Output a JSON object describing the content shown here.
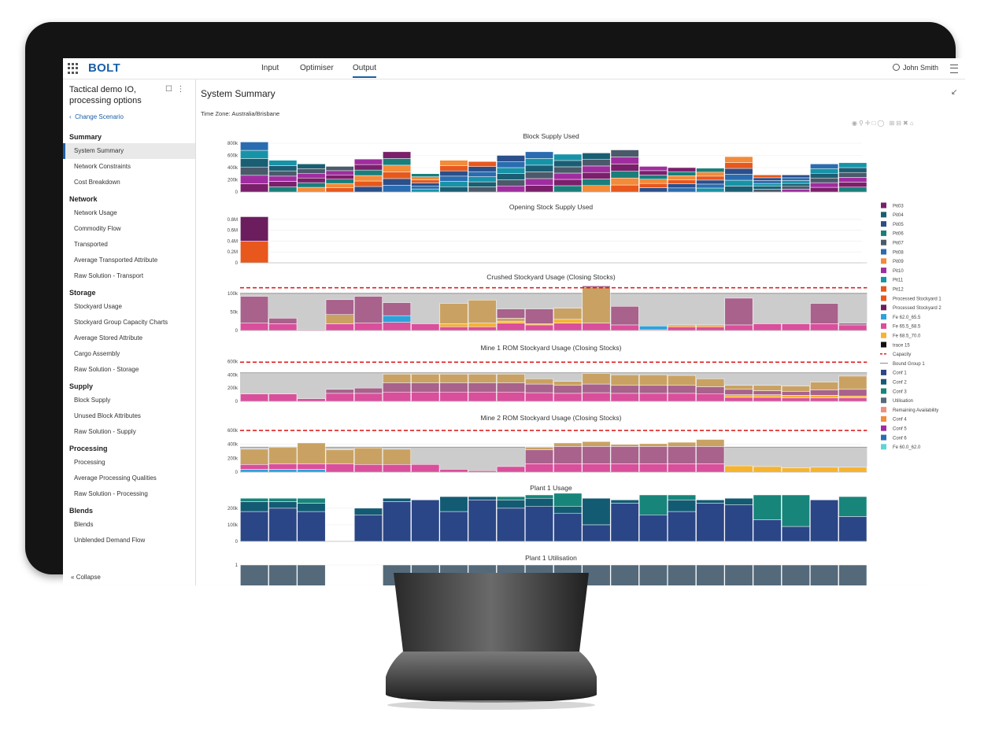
{
  "nav": {
    "logo": "BOLT",
    "tabs": [
      {
        "label": "Input"
      },
      {
        "label": "Optimiser"
      },
      {
        "label": "Output",
        "active": true
      }
    ],
    "user": "John Smith"
  },
  "sidebar": {
    "scenario_title": "Tactical demo IO, processing options",
    "change_scenario": "Change Scenario",
    "collapse": "Collapse",
    "groups": [
      {
        "title": "Summary",
        "items": [
          "System Summary",
          "Network Constraints",
          "Cost Breakdown"
        ]
      },
      {
        "title": "Network",
        "items": [
          "Network Usage",
          "Commodity Flow",
          "Transported",
          "Average Transported Attribute",
          "Raw Solution - Transport"
        ]
      },
      {
        "title": "Storage",
        "items": [
          "Stockyard Usage",
          "Stockyard Group Capacity Charts",
          "Average Stored Attribute",
          "Cargo Assembly",
          "Raw Solution - Storage"
        ]
      },
      {
        "title": "Supply",
        "items": [
          "Block Supply",
          "Unused Block Attributes",
          "Raw Solution - Supply"
        ]
      },
      {
        "title": "Processing",
        "items": [
          "Processing",
          "Average Processing Qualities",
          "Raw Solution - Processing"
        ]
      },
      {
        "title": "Blends",
        "items": [
          "Blends",
          "Unblended Demand Flow"
        ]
      }
    ],
    "active_item": "System Summary"
  },
  "main": {
    "title": "System Summary",
    "timezone": "Time Zone: Australia/Brisbane"
  },
  "colors": {
    "Pit03": "#7b1f6b",
    "Pit04": "#1a5e73",
    "Pit05": "#2a4f8a",
    "Pit06": "#1a7f7a",
    "Pit07": "#4a5a6a",
    "Pit08": "#2b6cb0",
    "Pit09": "#f28b3a",
    "Pit10": "#a02da0",
    "Pit11": "#1793a8",
    "Pit12": "#e8581c",
    "Processed Stockyard 1": "#e8581c",
    "Processed Stockyard 2": "#6b1d5e",
    "Fe 62.0_65.5": "#2ea1d9",
    "Fe 65.5_68.5": "#d94f9b",
    "Fe 68.5_70.0": "#f5b330",
    "trace 15": "#111111",
    "Capacity": "#e02020",
    "Bound Group 1": "#999999",
    "Conf 1": "#2b4686",
    "Conf 2": "#135b73",
    "Conf 3": "#17857a",
    "Utilisation": "#546a7b",
    "Remaining Availability": "#f08f80",
    "Conf 4": "#f28b3a",
    "Conf 5": "#a02da0",
    "Conf 6": "#2b6cb0",
    "Fe 60.0_62.0": "#5fd4d8",
    "bound_fill": "#cccccc",
    "tan": "#c9a263",
    "mauve": "#a8628c"
  },
  "legend": [
    "Pit03",
    "Pit04",
    "Pit05",
    "Pit06",
    "Pit07",
    "Pit08",
    "Pit09",
    "Pit10",
    "Pit11",
    "Pit12",
    "Processed Stockyard 1",
    "Processed Stockyard 2",
    "Fe 62.0_65.5",
    "Fe 65.5_68.5",
    "Fe 68.5_70.0",
    "trace 15",
    "Capacity",
    "Bound Group 1",
    "Conf 1",
    "Conf 2",
    "Conf 3",
    "Utilisation",
    "Remaining Availability",
    "Conf 4",
    "Conf 5",
    "Conf 6",
    "Fe 60.0_62.0"
  ],
  "chart_data": [
    {
      "type": "bar",
      "title": "Block Supply Used",
      "yticks": [
        "0",
        "200k",
        "400k",
        "600k",
        "800k"
      ],
      "ymax": 800,
      "totals": [
        820,
        520,
        460,
        420,
        540,
        660,
        300,
        520,
        500,
        600,
        660,
        620,
        640,
        690,
        420,
        400,
        390,
        580,
        280,
        280,
        460,
        480
      ],
      "series": [
        "Pit03",
        "Pit04",
        "Pit05",
        "Pit06",
        "Pit07",
        "Pit08",
        "Pit09",
        "Pit10",
        "Pit11",
        "Pit12"
      ]
    },
    {
      "type": "bar",
      "title": "Opening Stock Supply Used",
      "yticks": [
        "0",
        "0.2M",
        "0.4M",
        "0.6M",
        "0.8M"
      ],
      "ymax": 0.9,
      "series": [
        {
          "name": "Processed Stockyard 1",
          "values": [
            0.4
          ]
        },
        {
          "name": "Processed Stockyard 2",
          "values": [
            0.45
          ]
        }
      ]
    },
    {
      "type": "bar",
      "title": "Crushed Stockyard Usage (Closing Stocks)",
      "yticks": [
        "0",
        "50k",
        "100k"
      ],
      "ymax": 125,
      "capacity": 115,
      "bound": 100,
      "series": [
        {
          "name": "Fe 65.5_68.5",
          "values": [
            20,
            18,
            2,
            18,
            20,
            22,
            18,
            10,
            10,
            20,
            15,
            20,
            20,
            15,
            2,
            10,
            10,
            15,
            18,
            18,
            18,
            15
          ]
        },
        {
          "name": "Fe 62.0_65.5",
          "values": [
            0,
            0,
            0,
            0,
            0,
            18,
            0,
            0,
            0,
            0,
            0,
            0,
            0,
            0,
            10,
            0,
            0,
            0,
            0,
            0,
            0,
            0
          ]
        },
        {
          "name": "Fe 68.5_70.0",
          "values": [
            0,
            0,
            0,
            0,
            0,
            0,
            0,
            8,
            10,
            5,
            3,
            10,
            0,
            0,
            0,
            5,
            5,
            0,
            0,
            0,
            0,
            0
          ]
        },
        {
          "name": "tan",
          "values": [
            0,
            0,
            0,
            25,
            0,
            0,
            0,
            55,
            62,
            8,
            0,
            30,
            95,
            0,
            0,
            0,
            0,
            0,
            0,
            0,
            0,
            0
          ]
        },
        {
          "name": "mauve",
          "values": [
            72,
            15,
            0,
            40,
            72,
            35,
            0,
            0,
            0,
            25,
            40,
            0,
            5,
            50,
            0,
            0,
            0,
            72,
            0,
            0,
            55,
            5
          ]
        }
      ]
    },
    {
      "type": "bar",
      "title": "Mine 1 ROM Stockyard Usage (Closing Stocks)",
      "yticks": [
        "0",
        "200k",
        "400k",
        "600k"
      ],
      "ymax": 700,
      "capacity": 590,
      "bound": 430,
      "series": [
        {
          "name": "Fe 65.5_68.5",
          "values": [
            110,
            110,
            40,
            120,
            120,
            140,
            140,
            140,
            140,
            140,
            130,
            120,
            130,
            120,
            120,
            120,
            110,
            60,
            60,
            50,
            50,
            50
          ]
        },
        {
          "name": "Fe 68.5_70.0",
          "values": [
            0,
            0,
            0,
            0,
            0,
            0,
            0,
            0,
            0,
            0,
            0,
            0,
            0,
            0,
            0,
            0,
            0,
            40,
            40,
            40,
            40,
            30
          ]
        },
        {
          "name": "mauve",
          "values": [
            0,
            0,
            0,
            60,
            80,
            140,
            140,
            140,
            140,
            140,
            130,
            120,
            130,
            120,
            120,
            120,
            110,
            80,
            60,
            60,
            80,
            100
          ]
        },
        {
          "name": "tan",
          "values": [
            0,
            0,
            0,
            0,
            0,
            130,
            130,
            130,
            130,
            130,
            80,
            60,
            160,
            160,
            160,
            150,
            120,
            60,
            80,
            80,
            120,
            200
          ]
        }
      ]
    },
    {
      "type": "bar",
      "title": "Mine 2 ROM Stockyard Usage (Closing Stocks)",
      "yticks": [
        "0",
        "200k",
        "400k",
        "600k"
      ],
      "ymax": 680,
      "capacity": 600,
      "bound": 360,
      "series": [
        {
          "name": "Fe 62.0_65.5",
          "values": [
            40,
            40,
            40,
            0,
            0,
            0,
            0,
            0,
            0,
            0,
            0,
            0,
            0,
            0,
            0,
            0,
            0,
            0,
            0,
            0,
            0,
            0
          ]
        },
        {
          "name": "Fe 65.5_68.5",
          "values": [
            70,
            80,
            80,
            120,
            110,
            110,
            110,
            40,
            20,
            80,
            120,
            120,
            120,
            120,
            120,
            120,
            120,
            0,
            0,
            0,
            0,
            0
          ]
        },
        {
          "name": "Fe 68.5_70.0",
          "values": [
            0,
            0,
            0,
            0,
            0,
            0,
            0,
            0,
            0,
            0,
            0,
            0,
            0,
            0,
            0,
            0,
            0,
            90,
            80,
            60,
            70,
            70
          ]
        },
        {
          "name": "mauve",
          "values": [
            0,
            0,
            0,
            0,
            0,
            0,
            0,
            0,
            0,
            0,
            200,
            250,
            250,
            250,
            250,
            250,
            250,
            0,
            0,
            0,
            0,
            0
          ]
        },
        {
          "name": "tan",
          "values": [
            220,
            240,
            300,
            200,
            240,
            220,
            0,
            0,
            0,
            0,
            40,
            50,
            70,
            30,
            40,
            60,
            100,
            0,
            0,
            0,
            0,
            0
          ]
        }
      ]
    },
    {
      "type": "bar",
      "title": "Plant 1 Usage",
      "yticks": [
        "0",
        "100k",
        "200k"
      ],
      "ymax": 280,
      "series": [
        {
          "name": "Conf 1",
          "values": [
            180,
            200,
            180,
            0,
            160,
            240,
            250,
            180,
            250,
            200,
            210,
            170,
            100,
            230,
            160,
            180,
            230,
            220,
            130,
            90,
            250,
            150
          ]
        },
        {
          "name": "Conf 2",
          "values": [
            60,
            40,
            50,
            0,
            40,
            20,
            0,
            90,
            20,
            50,
            50,
            40,
            160,
            20,
            0,
            70,
            20,
            40,
            0,
            0,
            0,
            0
          ]
        },
        {
          "name": "Conf 3",
          "values": [
            20,
            20,
            30,
            0,
            0,
            0,
            0,
            0,
            0,
            20,
            20,
            80,
            0,
            0,
            120,
            30,
            0,
            0,
            150,
            190,
            0,
            120
          ]
        }
      ]
    },
    {
      "type": "bar",
      "title": "Plant 1 Utilisation",
      "yticks": [
        "1"
      ],
      "ymax": 1,
      "series": [
        {
          "name": "Utilisation",
          "values": [
            1,
            1,
            1,
            0,
            0,
            1,
            1,
            1,
            1,
            1,
            1,
            1,
            1,
            1,
            1,
            1,
            1,
            1,
            1,
            1,
            1,
            1
          ]
        }
      ]
    }
  ]
}
